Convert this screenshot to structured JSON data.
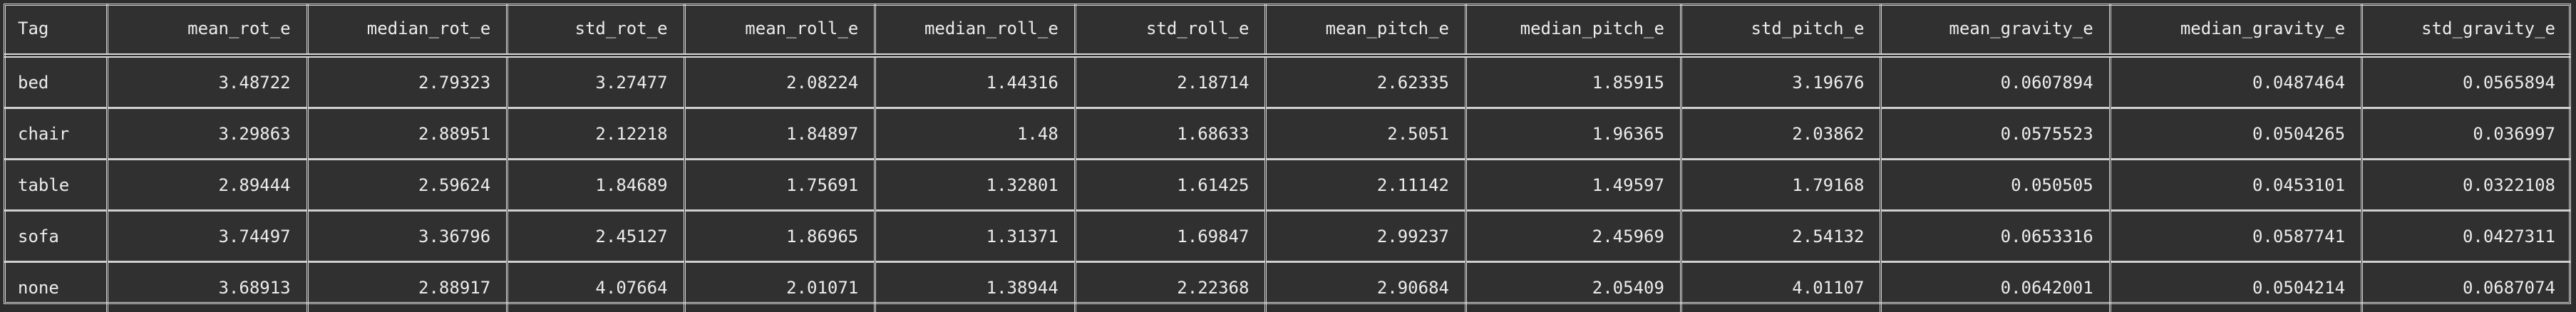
{
  "table": {
    "columns": [
      "Tag",
      "mean_rot_e",
      "median_rot_e",
      "std_rot_e",
      "mean_roll_e",
      "median_roll_e",
      "std_roll_e",
      "mean_pitch_e",
      "median_pitch_e",
      "std_pitch_e",
      "mean_gravity_e",
      "median_gravity_e",
      "std_gravity_e"
    ],
    "rows": [
      [
        "bed",
        "3.48722",
        "2.79323",
        "3.27477",
        "2.08224",
        "1.44316",
        "2.18714",
        "2.62335",
        "1.85915",
        "3.19676",
        "0.0607894",
        "0.0487464",
        "0.0565894"
      ],
      [
        "chair",
        "3.29863",
        "2.88951",
        "2.12218",
        "1.84897",
        "1.48",
        "1.68633",
        "2.5051",
        "1.96365",
        "2.03862",
        "0.0575523",
        "0.0504265",
        "0.036997"
      ],
      [
        "table",
        "2.89444",
        "2.59624",
        "1.84689",
        "1.75691",
        "1.32801",
        "1.61425",
        "2.11142",
        "1.49597",
        "1.79168",
        "0.050505",
        "0.0453101",
        "0.0322108"
      ],
      [
        "sofa",
        "3.74497",
        "3.36796",
        "2.45127",
        "1.86965",
        "1.31371",
        "1.69847",
        "2.99237",
        "2.45969",
        "2.54132",
        "0.0653316",
        "0.0587741",
        "0.0427311"
      ],
      [
        "none",
        "3.68913",
        "2.88917",
        "4.07664",
        "2.01071",
        "1.38944",
        "2.22368",
        "2.90684",
        "2.05409",
        "4.01107",
        "0.0642001",
        "0.0504214",
        "0.0687074"
      ]
    ]
  }
}
